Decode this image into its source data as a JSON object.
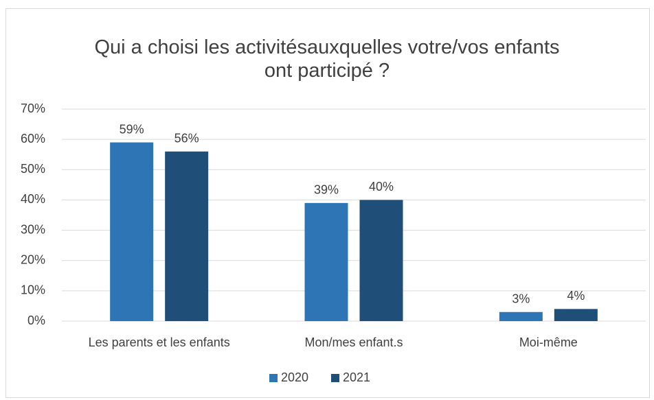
{
  "chart_data": {
    "type": "bar",
    "title": "Qui a choisi les activitésauxquelles votre/vos enfants ont participé ?",
    "categories": [
      "Les parents et les enfants",
      "Mon/mes enfant.s",
      "Moi-même"
    ],
    "series": [
      {
        "name": "2020",
        "color": "#2e75b6",
        "values": [
          59,
          39,
          3
        ],
        "value_labels": [
          "59%",
          "39%",
          "3%"
        ]
      },
      {
        "name": "2021",
        "color": "#1f4e79",
        "values": [
          56,
          40,
          4
        ],
        "value_labels": [
          "56%",
          "40%",
          "4%"
        ]
      }
    ],
    "ylim": [
      0,
      70
    ],
    "yticks": [
      {
        "value": 0,
        "label": "0%"
      },
      {
        "value": 10,
        "label": "10%"
      },
      {
        "value": 20,
        "label": "20%"
      },
      {
        "value": 30,
        "label": "30%"
      },
      {
        "value": 40,
        "label": "40%"
      },
      {
        "value": 50,
        "label": "50%"
      },
      {
        "value": 60,
        "label": "60%"
      },
      {
        "value": 70,
        "label": "70%"
      }
    ],
    "grid": true,
    "legend": "bottom"
  }
}
